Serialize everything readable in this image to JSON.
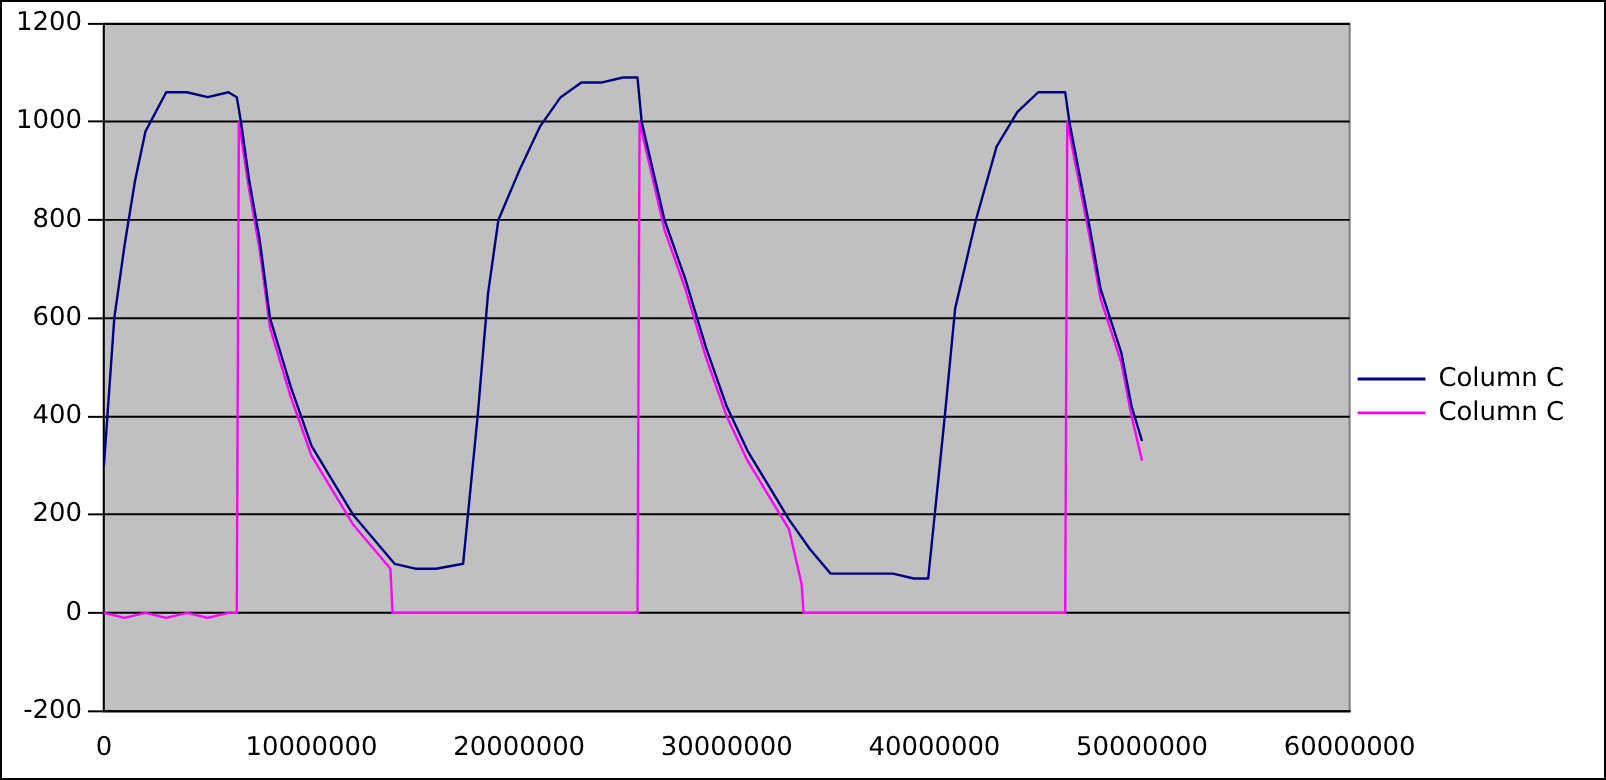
{
  "chart_data": {
    "type": "line",
    "xlim": [
      0,
      60000000
    ],
    "xticks": [
      0,
      10000000,
      20000000,
      30000000,
      40000000,
      50000000,
      60000000
    ],
    "ylim": [
      -200,
      1200
    ],
    "yticks": [
      -200,
      0,
      200,
      400,
      600,
      800,
      1000,
      1200
    ],
    "grid": "y",
    "legend": "right",
    "marker": "none",
    "line_style": "solid",
    "series": [
      {
        "name": "Column C",
        "color": "#000080",
        "x": [
          0,
          500000,
          1000000,
          1500000,
          2000000,
          2500000,
          3000000,
          4000000,
          5000000,
          6000000,
          6400000,
          6600000,
          7000000,
          7500000,
          8000000,
          9000000,
          10000000,
          11000000,
          12000000,
          13000000,
          14000000,
          15000000,
          16000000,
          17300000,
          18000000,
          18500000,
          19000000,
          20000000,
          21000000,
          22000000,
          23000000,
          24000000,
          25000000,
          25700000,
          25900000,
          27000000,
          28000000,
          29000000,
          30000000,
          31000000,
          32000000,
          33000000,
          34000000,
          35000000,
          36000000,
          38000000,
          39000000,
          39700000,
          40500000,
          41000000,
          42000000,
          43000000,
          44000000,
          45000000,
          46000000,
          46300000,
          46500000,
          47500000,
          48000000,
          49000000,
          49500000,
          50000000
        ],
        "values": [
          300,
          600,
          750,
          880,
          980,
          1020,
          1060,
          1060,
          1050,
          1060,
          1050,
          1000,
          880,
          760,
          600,
          460,
          340,
          270,
          200,
          150,
          100,
          90,
          90,
          100,
          400,
          650,
          800,
          900,
          990,
          1050,
          1080,
          1080,
          1090,
          1090,
          1000,
          800,
          680,
          540,
          420,
          330,
          260,
          190,
          130,
          80,
          80,
          80,
          70,
          70,
          400,
          620,
          800,
          950,
          1020,
          1060,
          1060,
          1060,
          1000,
          780,
          660,
          530,
          420,
          350
        ]
      },
      {
        "name": "Column C",
        "color": "#ff00ff",
        "x": [
          0,
          1000000,
          2000000,
          3000000,
          4000000,
          5000000,
          6000000,
          6400000,
          6500000,
          7000000,
          7500000,
          8000000,
          9000000,
          10000000,
          11000000,
          12000000,
          13000000,
          13800000,
          13900000,
          16000000,
          20000000,
          25700000,
          25800000,
          27000000,
          28000000,
          29000000,
          30000000,
          31000000,
          32000000,
          33000000,
          33600000,
          33700000,
          36000000,
          40000000,
          46300000,
          46400000,
          47500000,
          48000000,
          49000000,
          49500000,
          50000000
        ],
        "values": [
          0,
          -10,
          0,
          -10,
          0,
          -10,
          0,
          0,
          1000,
          860,
          740,
          580,
          440,
          320,
          250,
          180,
          130,
          90,
          0,
          0,
          0,
          0,
          1000,
          780,
          660,
          520,
          400,
          310,
          240,
          170,
          60,
          0,
          0,
          0,
          0,
          1000,
          760,
          640,
          510,
          400,
          310
        ]
      }
    ]
  }
}
